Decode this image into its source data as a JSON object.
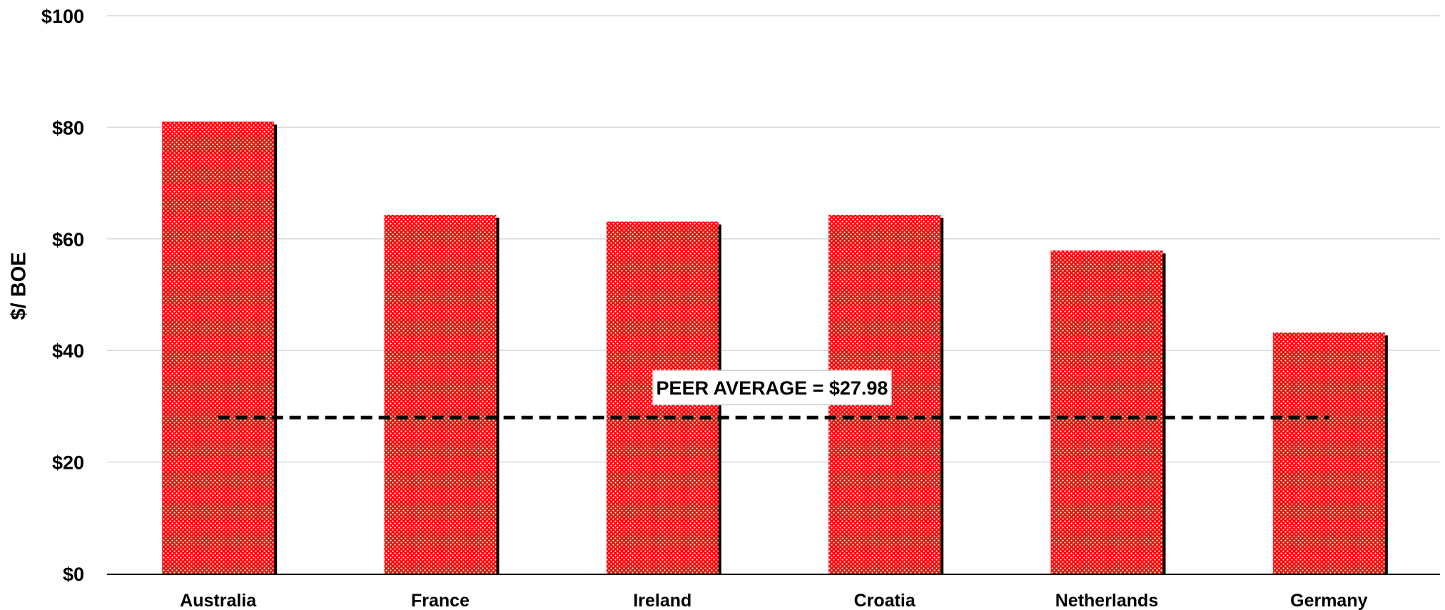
{
  "chart_data": {
    "type": "bar",
    "title": "",
    "xlabel": "",
    "ylabel": "$/ BOE",
    "ylim": [
      0,
      100
    ],
    "yticks": [
      0,
      20,
      40,
      60,
      80,
      100
    ],
    "ytick_labels": [
      "$0",
      "$20",
      "$40",
      "$60",
      "$80",
      "$100"
    ],
    "categories": [
      "Australia",
      "France",
      "Ireland",
      "Croatia",
      "Netherlands",
      "Germany"
    ],
    "series": [
      {
        "values": [
          81.0,
          64.3,
          63.1,
          64.3,
          57.9,
          43.2
        ]
      }
    ],
    "reference_line": {
      "value": 27.98,
      "label": "PEER AVERAGE = $27.98",
      "style": "dashed"
    },
    "grid": true,
    "legend": "none",
    "colors": {
      "bar_fill": "#ff0000",
      "bar_dots": "#ffffff",
      "bar_shadow": "#000000",
      "gridline": "#d9d9d9",
      "axis": "#000000",
      "reference_line": "#000000"
    }
  }
}
